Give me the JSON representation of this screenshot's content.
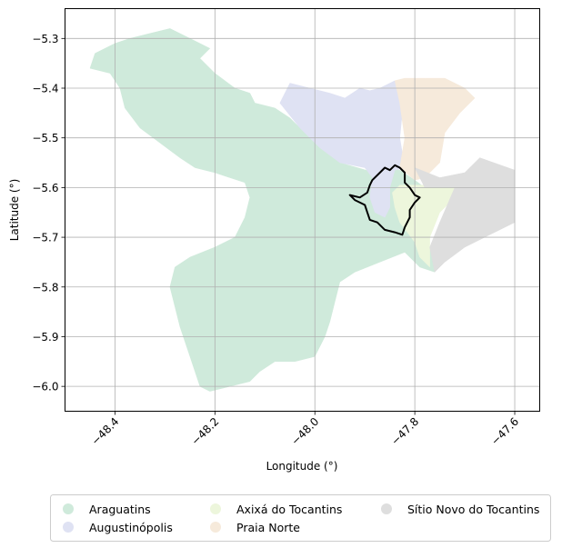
{
  "chart_data": {
    "type": "map",
    "xlabel": "Longitude (°)",
    "ylabel": "Latitude (°)",
    "xlim": [
      -48.5,
      -47.55
    ],
    "ylim": [
      -6.05,
      -5.24
    ],
    "xticks": [
      -48.4,
      -48.2,
      -48.0,
      -47.8,
      -47.6
    ],
    "yticks": [
      -5.3,
      -5.4,
      -5.5,
      -5.6,
      -5.7,
      -5.8,
      -5.9,
      -6.0
    ],
    "xtick_labels": [
      "−48.4",
      "−48.2",
      "−48.0",
      "−47.8",
      "−47.6"
    ],
    "ytick_labels": [
      "−5.3",
      "−5.4",
      "−5.5",
      "−5.6",
      "−5.7",
      "−5.8",
      "−5.9",
      "−6.0"
    ],
    "grid": true,
    "legend_position": "bottom",
    "regions": [
      {
        "name": "Araguatins",
        "color": "#cfeadb",
        "polygon": [
          [
            -48.39,
            -5.4
          ],
          [
            -48.41,
            -5.37
          ],
          [
            -48.45,
            -5.36
          ],
          [
            -48.44,
            -5.33
          ],
          [
            -48.4,
            -5.31
          ],
          [
            -48.37,
            -5.3
          ],
          [
            -48.33,
            -5.29
          ],
          [
            -48.29,
            -5.28
          ],
          [
            -48.25,
            -5.3
          ],
          [
            -48.23,
            -5.31
          ],
          [
            -48.21,
            -5.32
          ],
          [
            -48.23,
            -5.34
          ],
          [
            -48.2,
            -5.37
          ],
          [
            -48.16,
            -5.4
          ],
          [
            -48.13,
            -5.41
          ],
          [
            -48.12,
            -5.43
          ],
          [
            -48.08,
            -5.44
          ],
          [
            -48.05,
            -5.46
          ],
          [
            -48.03,
            -5.48
          ],
          [
            -47.99,
            -5.52
          ],
          [
            -47.95,
            -5.55
          ],
          [
            -47.88,
            -5.57
          ],
          [
            -47.86,
            -5.56
          ],
          [
            -47.83,
            -5.565
          ],
          [
            -47.8,
            -5.585
          ],
          [
            -47.78,
            -5.6
          ],
          [
            -47.82,
            -5.63
          ],
          [
            -47.83,
            -5.67
          ],
          [
            -47.8,
            -5.7
          ],
          [
            -47.77,
            -5.72
          ],
          [
            -47.76,
            -5.77
          ],
          [
            -47.79,
            -5.76
          ],
          [
            -47.82,
            -5.73
          ],
          [
            -47.87,
            -5.75
          ],
          [
            -47.92,
            -5.77
          ],
          [
            -47.95,
            -5.79
          ],
          [
            -47.96,
            -5.83
          ],
          [
            -47.97,
            -5.87
          ],
          [
            -47.98,
            -5.9
          ],
          [
            -48.0,
            -5.94
          ],
          [
            -48.04,
            -5.95
          ],
          [
            -48.08,
            -5.95
          ],
          [
            -48.11,
            -5.97
          ],
          [
            -48.13,
            -5.99
          ],
          [
            -48.17,
            -6.0
          ],
          [
            -48.21,
            -6.01
          ],
          [
            -48.23,
            -6.0
          ],
          [
            -48.24,
            -5.97
          ],
          [
            -48.25,
            -5.94
          ],
          [
            -48.26,
            -5.91
          ],
          [
            -48.27,
            -5.88
          ],
          [
            -48.28,
            -5.84
          ],
          [
            -48.29,
            -5.8
          ],
          [
            -48.28,
            -5.76
          ],
          [
            -48.25,
            -5.74
          ],
          [
            -48.2,
            -5.72
          ],
          [
            -48.16,
            -5.7
          ],
          [
            -48.14,
            -5.66
          ],
          [
            -48.13,
            -5.62
          ],
          [
            -48.14,
            -5.59
          ],
          [
            -48.17,
            -5.58
          ],
          [
            -48.2,
            -5.57
          ],
          [
            -48.24,
            -5.56
          ],
          [
            -48.27,
            -5.54
          ],
          [
            -48.31,
            -5.51
          ],
          [
            -48.35,
            -5.48
          ],
          [
            -48.38,
            -5.44
          ]
        ]
      },
      {
        "name": "Augustinópolis",
        "color": "#dfe2f3",
        "polygon": [
          [
            -48.07,
            -5.43
          ],
          [
            -48.05,
            -5.39
          ],
          [
            -48.01,
            -5.4
          ],
          [
            -47.97,
            -5.41
          ],
          [
            -47.94,
            -5.42
          ],
          [
            -47.91,
            -5.4
          ],
          [
            -47.89,
            -5.405
          ],
          [
            -47.87,
            -5.4
          ],
          [
            -47.84,
            -5.385
          ],
          [
            -47.82,
            -5.4
          ],
          [
            -47.83,
            -5.5
          ],
          [
            -47.82,
            -5.56
          ],
          [
            -47.84,
            -5.565
          ],
          [
            -47.85,
            -5.6
          ],
          [
            -47.85,
            -5.64
          ],
          [
            -47.86,
            -5.66
          ],
          [
            -47.88,
            -5.65
          ],
          [
            -47.89,
            -5.62
          ],
          [
            -47.885,
            -5.58
          ],
          [
            -47.9,
            -5.56
          ],
          [
            -47.95,
            -5.55
          ],
          [
            -47.99,
            -5.52
          ],
          [
            -48.03,
            -5.48
          ]
        ]
      },
      {
        "name": "Axixá do Tocantins",
        "color": "#edf6dc",
        "polygon": [
          [
            -47.83,
            -5.595
          ],
          [
            -47.78,
            -5.595
          ],
          [
            -47.72,
            -5.6
          ],
          [
            -47.7,
            -5.6
          ],
          [
            -47.75,
            -5.65
          ],
          [
            -47.77,
            -5.7
          ],
          [
            -47.77,
            -5.76
          ],
          [
            -47.79,
            -5.74
          ],
          [
            -47.8,
            -5.71
          ],
          [
            -47.83,
            -5.67
          ],
          [
            -47.84,
            -5.64
          ],
          [
            -47.845,
            -5.61
          ]
        ]
      },
      {
        "name": "Praia Norte",
        "color": "#f6eadb",
        "polygon": [
          [
            -47.84,
            -5.385
          ],
          [
            -47.82,
            -5.38
          ],
          [
            -47.78,
            -5.38
          ],
          [
            -47.74,
            -5.38
          ],
          [
            -47.72,
            -5.39
          ],
          [
            -47.7,
            -5.4
          ],
          [
            -47.68,
            -5.42
          ],
          [
            -47.71,
            -5.45
          ],
          [
            -47.74,
            -5.49
          ],
          [
            -47.75,
            -5.55
          ],
          [
            -47.78,
            -5.58
          ],
          [
            -47.8,
            -5.585
          ],
          [
            -47.83,
            -5.56
          ],
          [
            -47.82,
            -5.5
          ],
          [
            -47.83,
            -5.43
          ]
        ]
      },
      {
        "name": "Sítio Novo do Tocantins",
        "color": "#dedede",
        "polygon": [
          [
            -47.8,
            -5.56
          ],
          [
            -47.75,
            -5.58
          ],
          [
            -47.7,
            -5.57
          ],
          [
            -47.67,
            -5.54
          ],
          [
            -47.6,
            -5.565
          ],
          [
            -47.6,
            -5.67
          ],
          [
            -47.65,
            -5.695
          ],
          [
            -47.7,
            -5.72
          ],
          [
            -47.74,
            -5.75
          ],
          [
            -47.76,
            -5.77
          ],
          [
            -47.77,
            -5.72
          ],
          [
            -47.75,
            -5.67
          ],
          [
            -47.72,
            -5.6
          ],
          [
            -47.78,
            -5.6
          ]
        ]
      }
    ],
    "outline": {
      "color": "#000000",
      "polygon": [
        [
          -47.87,
          -5.57
        ],
        [
          -47.86,
          -5.56
        ],
        [
          -47.85,
          -5.565
        ],
        [
          -47.84,
          -5.555
        ],
        [
          -47.83,
          -5.56
        ],
        [
          -47.82,
          -5.57
        ],
        [
          -47.82,
          -5.59
        ],
        [
          -47.81,
          -5.6
        ],
        [
          -47.8,
          -5.615
        ],
        [
          -47.79,
          -5.62
        ],
        [
          -47.8,
          -5.63
        ],
        [
          -47.81,
          -5.645
        ],
        [
          -47.81,
          -5.66
        ],
        [
          -47.82,
          -5.68
        ],
        [
          -47.825,
          -5.695
        ],
        [
          -47.84,
          -5.69
        ],
        [
          -47.86,
          -5.685
        ],
        [
          -47.875,
          -5.67
        ],
        [
          -47.89,
          -5.665
        ],
        [
          -47.895,
          -5.65
        ],
        [
          -47.9,
          -5.635
        ],
        [
          -47.92,
          -5.625
        ],
        [
          -47.93,
          -5.615
        ],
        [
          -47.91,
          -5.62
        ],
        [
          -47.895,
          -5.61
        ],
        [
          -47.89,
          -5.595
        ],
        [
          -47.885,
          -5.585
        ]
      ]
    }
  },
  "legend": {
    "items": [
      {
        "label": "Araguatins",
        "color": "#cfeadb"
      },
      {
        "label": "Augustinópolis",
        "color": "#dfe2f3"
      },
      {
        "label": "Axixá do Tocantins",
        "color": "#edf6dc"
      },
      {
        "label": "Praia Norte",
        "color": "#f6eadb"
      },
      {
        "label": "Sítio Novo do Tocantins",
        "color": "#dedede"
      }
    ]
  }
}
